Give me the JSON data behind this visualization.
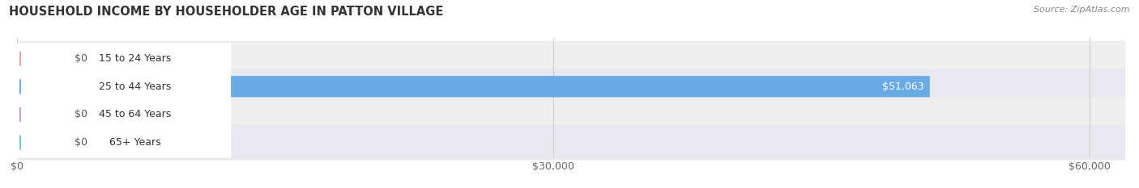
{
  "title": "HOUSEHOLD INCOME BY HOUSEHOLDER AGE IN PATTON VILLAGE",
  "source": "Source: ZipAtlas.com",
  "categories": [
    "15 to 24 Years",
    "25 to 44 Years",
    "45 to 64 Years",
    "65+ Years"
  ],
  "values": [
    0,
    51063,
    0,
    0
  ],
  "bar_colors": [
    "#f0a0a8",
    "#6aaae6",
    "#c0a0cc",
    "#6ecece"
  ],
  "row_bg_colors": [
    "#efefef",
    "#e8e8f0",
    "#efefef",
    "#e8e8f0"
  ],
  "xlim_max": 62000,
  "xticks": [
    0,
    30000,
    60000
  ],
  "xtick_labels": [
    "$0",
    "$30,000",
    "$60,000"
  ],
  "value_labels": [
    "$0",
    "$51,063",
    "$0",
    "$0"
  ],
  "figsize": [
    14.06,
    2.33
  ],
  "dpi": 100,
  "title_fontsize": 10.5,
  "source_fontsize": 8,
  "bar_label_fontsize": 9,
  "tick_fontsize": 9
}
